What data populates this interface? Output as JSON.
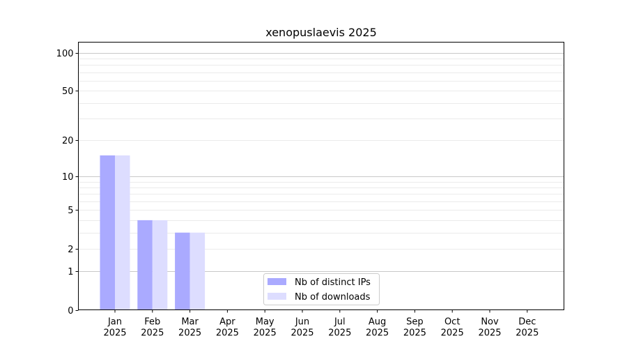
{
  "chart_data": {
    "type": "bar",
    "title": "xenopuslaevis 2025",
    "xlabel": "",
    "ylabel": "",
    "yscale": "symlog",
    "ylim": [
      0,
      114
    ],
    "yticks": [
      0,
      1,
      2,
      5,
      10,
      20,
      50,
      100
    ],
    "grid": true,
    "legend_placement": "bottom-center",
    "categories": [
      "Jan\n2025",
      "Feb\n2025",
      "Mar\n2025",
      "Apr\n2025",
      "May\n2025",
      "Jun\n2025",
      "Jul\n2025",
      "Aug\n2025",
      "Sep\n2025",
      "Oct\n2025",
      "Nov\n2025",
      "Dec\n2025"
    ],
    "series": [
      {
        "name": "Nb of distinct IPs",
        "color": "#aaaaff",
        "values": [
          15,
          4,
          3,
          0,
          0,
          0,
          0,
          0,
          0,
          0,
          0,
          0
        ]
      },
      {
        "name": "Nb of downloads",
        "color": "#ddddff",
        "values": [
          15,
          4,
          3,
          0,
          0,
          0,
          0,
          0,
          0,
          0,
          0,
          0
        ]
      }
    ]
  }
}
